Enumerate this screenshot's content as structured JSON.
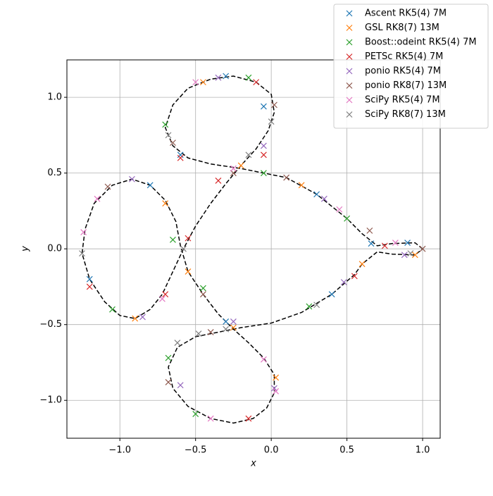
{
  "chart_data": {
    "type": "line",
    "xlabel": "x",
    "ylabel": "y",
    "xlim": [
      -1.35,
      1.116
    ],
    "ylim": [
      -1.25,
      1.247
    ],
    "xticks": [
      {
        "value": -1,
        "label": "−1.0"
      },
      {
        "value": -0.5,
        "label": "−0.5"
      },
      {
        "value": 0,
        "label": "0.0"
      },
      0.5,
      {
        "value": 1,
        "label": "1.0"
      }
    ],
    "yticks": [
      {
        "value": -1,
        "label": "−1.0"
      },
      {
        "value": -0.5,
        "label": "−0.5"
      },
      {
        "value": 0,
        "label": "0.0"
      },
      0.5,
      {
        "value": 1,
        "label": "1.0"
      }
    ],
    "grid": true,
    "legend": "upper right",
    "series": [
      {
        "color": "#000000",
        "linestyle": "dashed",
        "x": [
          1.0,
          0.95,
          0.8,
          0.7,
          0.6,
          0.5,
          0.3,
          0.1,
          0.0,
          -0.2,
          -0.4,
          -0.55,
          -0.65,
          -0.7,
          -0.65,
          -0.55,
          -0.4,
          -0.25,
          -0.1,
          0.0,
          0.02,
          -0.02,
          -0.1,
          -0.2,
          -0.3,
          -0.4,
          -0.5,
          -0.58,
          -0.65,
          -0.72,
          -0.8,
          -0.9,
          -1.0,
          -1.1,
          -1.2,
          -1.25,
          -1.23,
          -1.17,
          -1.05,
          -0.92,
          -0.8,
          -0.7,
          -0.63,
          -0.6,
          -0.55,
          -0.45,
          -0.35,
          -0.25,
          -0.15,
          -0.05,
          0.02,
          0.02,
          -0.03,
          -0.12,
          -0.25,
          -0.4,
          -0.55,
          -0.65,
          -0.68,
          -0.62,
          -0.5,
          -0.35,
          -0.2,
          0.0,
          0.2,
          0.4,
          0.55,
          0.6,
          0.7,
          0.8,
          0.95,
          1.0
        ],
        "values": [
          0.0,
          0.04,
          0.035,
          0.02,
          0.1,
          0.2,
          0.36,
          0.47,
          0.49,
          0.53,
          0.56,
          0.6,
          0.68,
          0.8,
          0.95,
          1.06,
          1.12,
          1.14,
          1.1,
          1.02,
          0.9,
          0.78,
          0.66,
          0.55,
          0.43,
          0.3,
          0.15,
          0.0,
          -0.15,
          -0.3,
          -0.4,
          -0.46,
          -0.44,
          -0.35,
          -0.2,
          -0.03,
          0.13,
          0.3,
          0.42,
          0.46,
          0.42,
          0.32,
          0.18,
          0.02,
          -0.15,
          -0.3,
          -0.43,
          -0.53,
          -0.62,
          -0.72,
          -0.83,
          -0.95,
          -1.05,
          -1.12,
          -1.15,
          -1.12,
          -1.04,
          -0.92,
          -0.78,
          -0.65,
          -0.58,
          -0.55,
          -0.52,
          -0.49,
          -0.42,
          -0.3,
          -0.17,
          -0.1,
          -0.02,
          -0.035,
          -0.04,
          0.0
        ]
      },
      {
        "name": "Ascent RK5(4) 7M",
        "color": "#1f77b4",
        "marker": "x",
        "x": [
          0.66,
          0.9,
          0.3,
          -0.3,
          -0.6,
          -1.2,
          -0.8,
          -0.3,
          -0.05,
          0.4
        ],
        "values": [
          0.035,
          0.04,
          0.36,
          1.14,
          0.62,
          -0.2,
          0.42,
          -0.48,
          0.94,
          -0.3
        ]
      },
      {
        "name": "GSL RK8(7) 13M",
        "color": "#ff7f0e",
        "marker": "x",
        "x": [
          0.95,
          0.2,
          -0.45,
          -0.7,
          -0.9,
          -0.55,
          0.03,
          -0.25,
          0.6,
          -0.2
        ],
        "values": [
          -0.04,
          0.42,
          1.1,
          0.3,
          -0.46,
          -0.15,
          -0.85,
          -0.52,
          -0.1,
          0.55
        ]
      },
      {
        "name": "Boost::odeint RK5(4) 7M",
        "color": "#2ca02c",
        "marker": "x",
        "x": [
          0.5,
          -0.05,
          -0.7,
          -0.15,
          -0.45,
          -1.05,
          -0.65,
          -0.5,
          0.25,
          -0.68
        ],
        "values": [
          0.2,
          0.5,
          0.82,
          1.13,
          -0.26,
          -0.4,
          0.06,
          -1.09,
          -0.38,
          -0.72
        ]
      },
      {
        "name": "PETSc RK5(4) 7M",
        "color": "#d62728",
        "marker": "x",
        "x": [
          0.75,
          -0.1,
          -0.6,
          -0.05,
          -0.55,
          -1.2,
          -0.7,
          -0.15,
          -0.35,
          0.55
        ],
        "values": [
          0.02,
          1.1,
          0.6,
          0.62,
          0.07,
          -0.25,
          -0.3,
          -1.12,
          0.45,
          -0.18
        ]
      },
      {
        "name": "ponio RK5(4) 7M",
        "color": "#9467bd",
        "marker": "x",
        "x": [
          0.88,
          0.35,
          -0.35,
          -0.92,
          -0.85,
          0.02,
          -0.6,
          -0.05,
          0.48,
          -0.25
        ],
        "values": [
          -0.04,
          0.33,
          1.13,
          0.46,
          -0.45,
          -0.92,
          -0.9,
          0.68,
          -0.22,
          -0.48
        ]
      },
      {
        "name": "ponio RK8(7) 13M",
        "color": "#8c564b",
        "marker": "x",
        "x": [
          1.0,
          -0.65,
          -1.08,
          -0.45,
          0.02,
          -0.68,
          0.1,
          -0.25,
          -0.4,
          0.65
        ],
        "values": [
          0.0,
          0.7,
          0.41,
          -0.3,
          0.95,
          -0.88,
          0.47,
          0.5,
          -0.55,
          0.12
        ]
      },
      {
        "name": "SciPy RK5(4) 7M",
        "color": "#e377c2",
        "marker": "x",
        "x": [
          0.82,
          0.45,
          -0.25,
          -0.5,
          -1.24,
          -1.15,
          -0.72,
          -0.05,
          0.03,
          -0.4
        ],
        "values": [
          0.04,
          0.26,
          0.53,
          1.1,
          0.11,
          0.33,
          -0.33,
          -0.73,
          -0.94,
          -1.12
        ]
      },
      {
        "name": "SciPy RK8(7) 13M",
        "color": "#7f7f7f",
        "marker": "x",
        "x": [
          0.92,
          -0.68,
          -0.15,
          -0.58,
          -1.25,
          -0.62,
          -0.3,
          0.0,
          -0.48,
          0.3
        ],
        "values": [
          -0.03,
          0.75,
          0.62,
          0.0,
          -0.03,
          -0.62,
          -0.53,
          0.84,
          -0.56,
          -0.37
        ]
      }
    ]
  }
}
